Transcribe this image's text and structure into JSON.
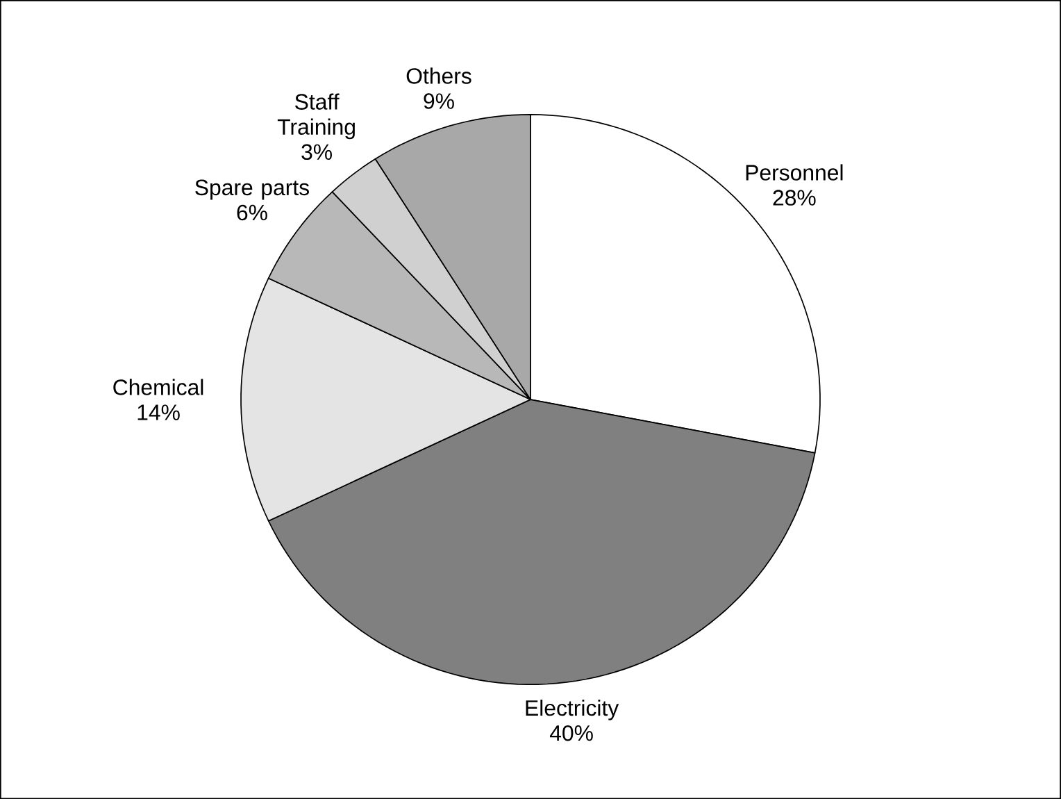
{
  "chart_data": {
    "type": "pie",
    "categories": [
      "Personnel",
      "Electricity",
      "Chemical",
      "Spare parts",
      "Staff Training",
      "Others"
    ],
    "values": [
      28,
      40,
      14,
      6,
      3,
      9
    ],
    "value_labels": [
      "28%",
      "40%",
      "14%",
      "6%",
      "3%",
      "9%"
    ],
    "colors": [
      "#ffffff",
      "#808080",
      "#e4e4e4",
      "#b8b8b8",
      "#d0d0d0",
      "#a8a8a8"
    ]
  }
}
